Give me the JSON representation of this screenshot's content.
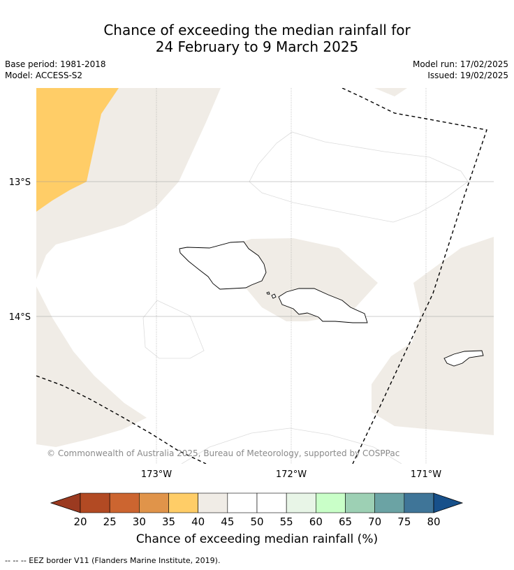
{
  "title": {
    "line1": "Chance of exceeding the median rainfall for",
    "line2": "24 February to 9 March 2025"
  },
  "meta": {
    "base_period": "Base period: 1981-2018",
    "model": "Model: ACCESS-S2",
    "model_run": "Model run: 17/02/2025",
    "issued": "Issued: 19/02/2025"
  },
  "map": {
    "lat_labels": [
      "13°S",
      "14°S"
    ],
    "lon_labels": [
      "173°W",
      "172°W",
      "171°W"
    ],
    "copyright": "© Commonwealth of Australia 2025, Bureau of Meteorology, supported by COSPPac",
    "colors": {
      "land_fill": "#ffffff",
      "band_40_45": "#f0ece6",
      "band_35_40": "#ffcd67",
      "coast": "#000000",
      "grid": "#9a9a9a"
    }
  },
  "colorbar": {
    "ticks": [
      "20",
      "25",
      "30",
      "35",
      "40",
      "45",
      "50",
      "55",
      "60",
      "65",
      "70",
      "75",
      "80"
    ],
    "colors": [
      "#b24a23",
      "#cc6530",
      "#e0944a",
      "#ffcd67",
      "#f0ece6",
      "#ffffff",
      "#ffffff",
      "#e8f5e7",
      "#c9ffc8",
      "#9dd0b4",
      "#6ba3a4",
      "#3f7598"
    ],
    "low_extend_color": "#9b3a20",
    "high_extend_color": "#17508a",
    "label": "Chance of exceeding median rainfall (%)"
  },
  "footnote": "-- -- -- EEZ border V11 (Flanders Marine Institute, 2019)."
}
